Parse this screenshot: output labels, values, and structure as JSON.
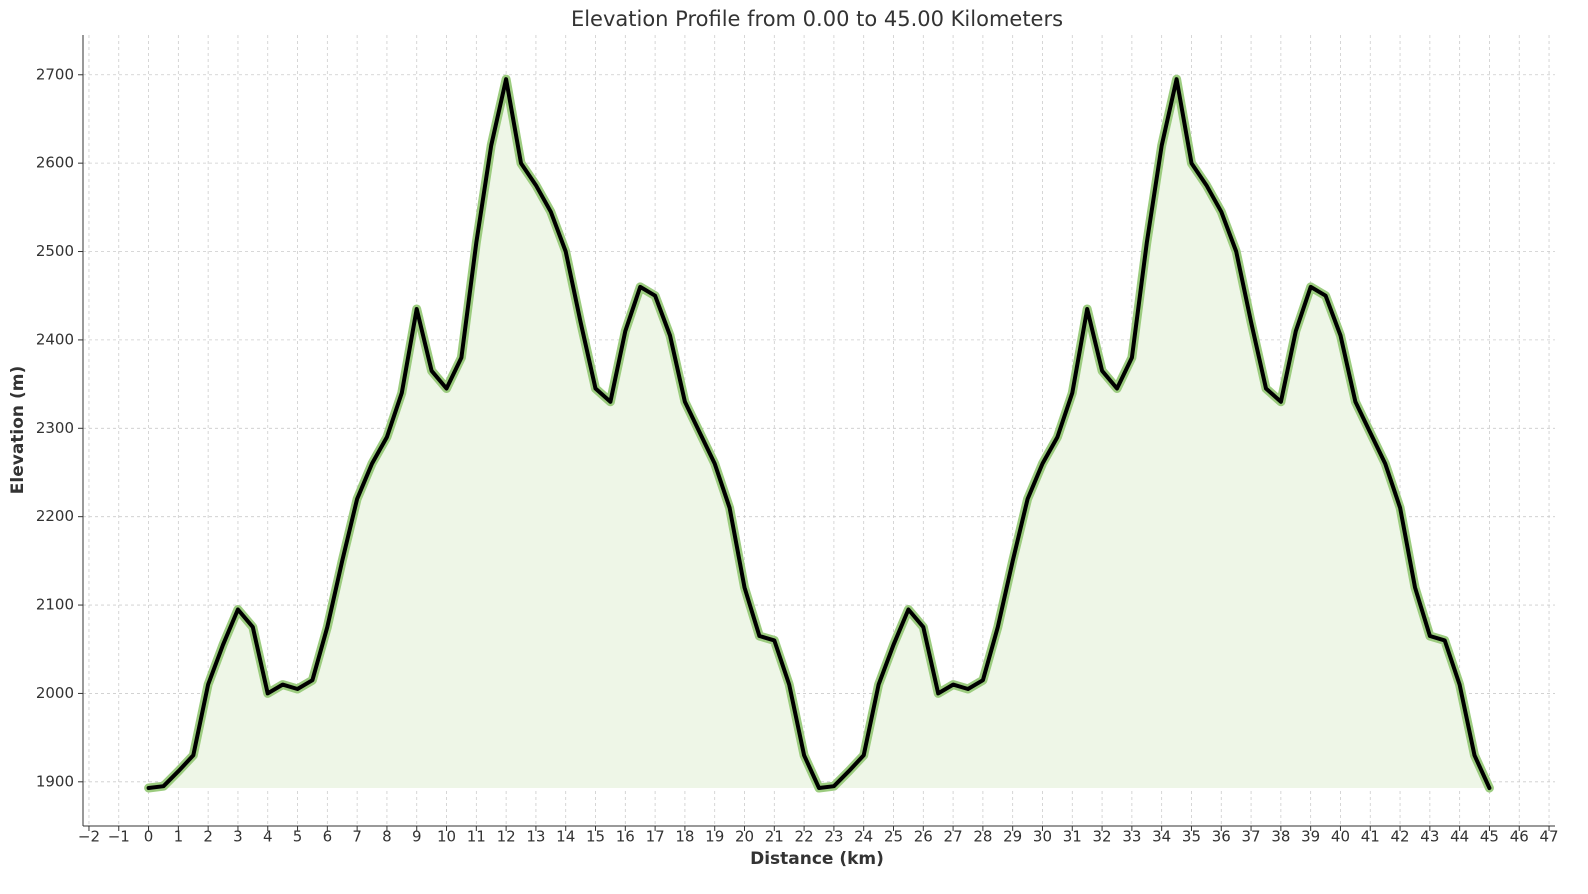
{
  "chart_data": {
    "type": "area-line",
    "title": "Elevation Profile from 0.00 to 45.00 Kilometers",
    "x_label": "Distance (km)",
    "y_label": "Elevation (m)",
    "x": [
      0,
      0.5,
      1,
      1.5,
      2,
      2.5,
      3,
      3.5,
      4,
      4.5,
      5,
      5.5,
      6,
      6.5,
      7,
      7.5,
      8,
      8.5,
      9,
      9.5,
      10,
      10.5,
      11,
      11.5,
      12,
      12.5,
      13,
      13.5,
      14,
      14.5,
      15,
      15.5,
      16,
      16.5,
      17,
      17.5,
      18,
      18.5,
      19,
      19.5,
      20,
      20.5,
      21,
      21.5,
      22,
      22.5,
      23,
      23.5,
      24,
      24.5,
      25,
      25.5,
      26,
      26.5,
      27,
      27.5,
      28,
      28.5,
      29,
      29.5,
      30,
      30.5,
      31,
      31.5,
      32,
      32.5,
      33,
      33.5,
      34,
      34.5,
      35,
      35.5,
      36,
      36.5,
      37,
      37.5,
      38,
      38.5,
      39,
      39.5,
      40,
      40.5,
      41,
      41.5,
      42,
      42.5,
      43,
      43.5,
      44,
      44.5,
      45
    ],
    "series": [
      {
        "name": "Elevation",
        "color": "#000000",
        "halo_color": "#9ccc7f",
        "fill_color": "#eef6e7",
        "values": [
          1893,
          1895,
          1912,
          1930,
          2010,
          2055,
          2095,
          2075,
          2000,
          2010,
          2005,
          2015,
          2075,
          2150,
          2220,
          2260,
          2290,
          2340,
          2435,
          2365,
          2345,
          2380,
          2510,
          2620,
          2695,
          2600,
          2575,
          2545,
          2500,
          2420,
          2345,
          2330,
          2410,
          2460,
          2450,
          2405,
          2330,
          2295,
          2260,
          2210,
          2120,
          2065,
          2060,
          2010,
          1930,
          1893,
          1895,
          1912,
          1930,
          2010,
          2055,
          2095,
          2075,
          2000,
          2010,
          2005,
          2015,
          2075,
          2150,
          2220,
          2260,
          2290,
          2340,
          2435,
          2365,
          2345,
          2380,
          2510,
          2620,
          2695,
          2600,
          2575,
          2545,
          2500,
          2420,
          2345,
          2330,
          2410,
          2460,
          2450,
          2405,
          2330,
          2295,
          2260,
          2210,
          2120,
          2065,
          2060,
          2010,
          1930,
          1893
        ]
      }
    ],
    "xlim": [
      -2.2,
      47.2
    ],
    "ylim": [
      1850,
      2745
    ],
    "xticks": [
      {
        "value": -2,
        "label": "−2"
      },
      {
        "value": -1,
        "label": "−1"
      },
      0,
      1,
      2,
      3,
      4,
      5,
      6,
      7,
      8,
      9,
      10,
      11,
      12,
      13,
      14,
      15,
      16,
      17,
      18,
      19,
      20,
      21,
      22,
      23,
      24,
      25,
      26,
      27,
      28,
      29,
      30,
      31,
      32,
      33,
      34,
      35,
      36,
      37,
      38,
      39,
      40,
      41,
      42,
      43,
      44,
      45,
      46,
      47
    ],
    "yticks": [
      1900,
      2000,
      2100,
      2200,
      2300,
      2400,
      2500,
      2600,
      2700
    ],
    "grid": true
  }
}
